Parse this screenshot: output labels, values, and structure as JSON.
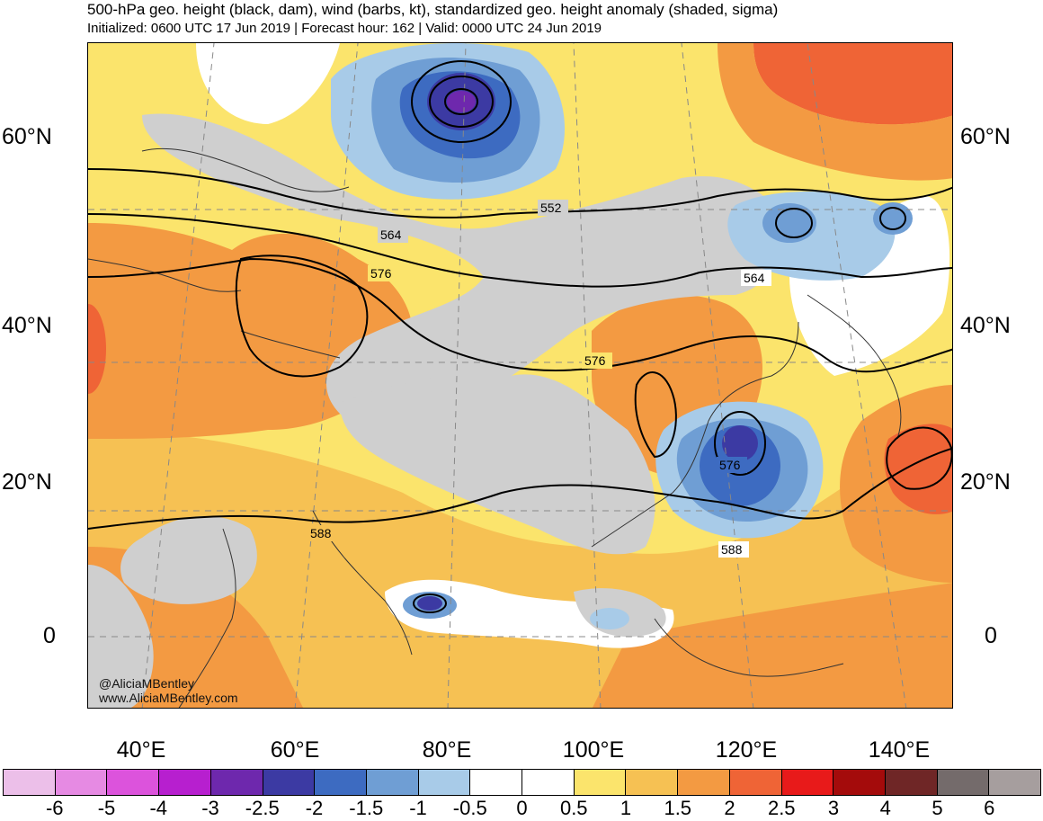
{
  "title": "500-hPa geo. height (black, dam), wind (barbs, kt), standardized geo. height anomaly (shaded, sigma)",
  "subtitle": "Initialized: 0600 UTC 17 Jun 2019 | Forecast hour: 162 | Valid: 0000 UTC 24 Jun 2019",
  "credits": {
    "handle": "@AliciaMBentley",
    "site": "www.AliciaMBentley.com"
  },
  "lat_labels": [
    "60°N",
    "40°N",
    "20°N",
    "0"
  ],
  "lon_labels": [
    "40°E",
    "60°E",
    "80°E",
    "100°E",
    "120°E",
    "140°E"
  ],
  "contour_labels": [
    "552",
    "564",
    "576",
    "564",
    "576",
    "576",
    "588",
    "588"
  ],
  "colorbar": {
    "labels": [
      "-6",
      "-5",
      "-4",
      "-3",
      "-2.5",
      "-2",
      "-1.5",
      "-1",
      "-0.5",
      "0",
      "0.5",
      "1",
      "1.5",
      "2",
      "2.5",
      "3",
      "4",
      "5",
      "6"
    ],
    "colors": [
      "#ecbfe9",
      "#e68ae3",
      "#dc53dc",
      "#b71fcf",
      "#6e28ad",
      "#3c3aa3",
      "#3d6bc1",
      "#6f9ed4",
      "#a8cbe8",
      "#ffffff",
      "#ffffff",
      "#fbe46c",
      "#f6c153",
      "#f39a42",
      "#ef6436",
      "#e81a1a",
      "#a40b0b",
      "#6f2626",
      "#746b6b",
      "#a69e9e"
    ]
  },
  "anomaly_colors": {
    "negative_strong": "#3c3aa3",
    "negative_mid": "#3d6bc1",
    "negative_weak": "#6f9ed4",
    "negative_faint": "#a8cbe8",
    "positive_faint": "#fbe46c",
    "positive_weak": "#f6c153",
    "positive_mid": "#f39a42",
    "positive_strong": "#ef6436",
    "land": "#cfcfcf"
  }
}
